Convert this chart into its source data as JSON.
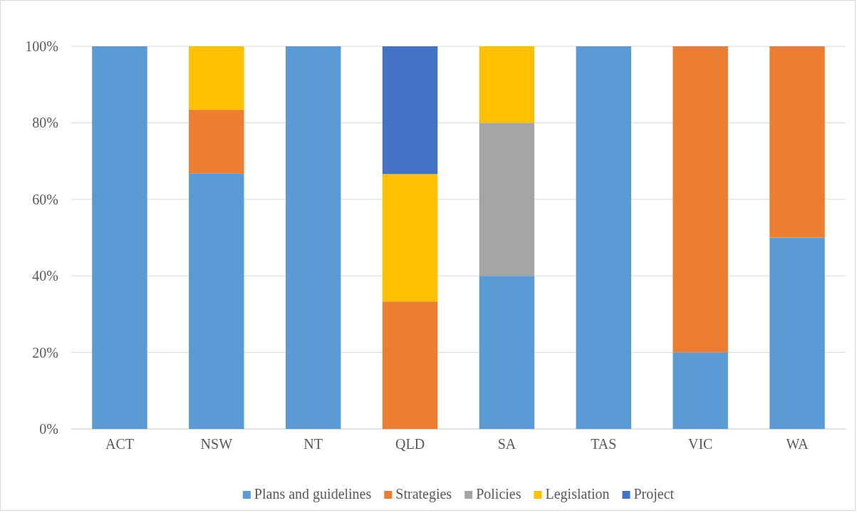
{
  "chart_data": {
    "type": "bar",
    "stacked": true,
    "categories": [
      "ACT",
      "NSW",
      "NT",
      "QLD",
      "SA",
      "TAS",
      "VIC",
      "WA"
    ],
    "series": [
      {
        "name": "Plans and guidelines",
        "color": "#5b9bd5",
        "values": [
          100,
          66.7,
          100,
          null,
          40,
          100,
          20,
          50
        ]
      },
      {
        "name": "Strategies",
        "color": "#ed7d31",
        "values": [
          null,
          16.7,
          null,
          33.3,
          null,
          null,
          80,
          50
        ]
      },
      {
        "name": "Policies",
        "color": "#a5a5a5",
        "values": [
          null,
          null,
          null,
          null,
          40,
          null,
          null,
          null
        ]
      },
      {
        "name": "Legislation",
        "color": "#ffc000",
        "values": [
          null,
          16.6,
          null,
          33.3,
          20,
          null,
          null,
          null
        ]
      },
      {
        "name": "Project",
        "color": "#4472c4",
        "values": [
          null,
          null,
          null,
          33.4,
          null,
          null,
          null,
          null
        ]
      }
    ],
    "ylim": [
      0,
      100
    ],
    "yticks": [
      {
        "value": 0,
        "label": "0%"
      },
      {
        "value": 20,
        "label": "20%"
      },
      {
        "value": 40,
        "label": "40%"
      },
      {
        "value": 60,
        "label": "60%"
      },
      {
        "value": 80,
        "label": "80%"
      },
      {
        "value": 100,
        "label": "100%"
      }
    ],
    "grid": "y",
    "legend": "bottom"
  }
}
